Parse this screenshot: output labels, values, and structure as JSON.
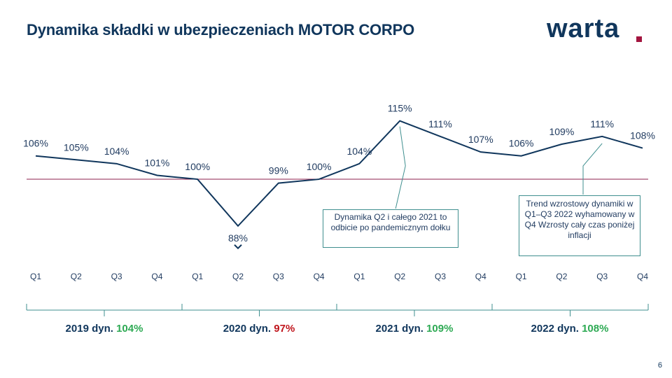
{
  "header": {
    "title": "Dynamika składki w ubezpieczeniach MOTOR CORPO",
    "logo_text": "warta"
  },
  "chart_data": {
    "type": "line",
    "categories": [
      "Q1",
      "Q2",
      "Q3",
      "Q4",
      "Q1",
      "Q2",
      "Q3",
      "Q4",
      "Q1",
      "Q2",
      "Q3",
      "Q4",
      "Q1",
      "Q2",
      "Q3",
      "Q4"
    ],
    "values": [
      106,
      105,
      104,
      101,
      100,
      88,
      99,
      100,
      104,
      115,
      111,
      107,
      106,
      109,
      111,
      108
    ],
    "labels": [
      "106%",
      "105%",
      "104%",
      "101%",
      "100%",
      "88%",
      "99%",
      "100%",
      "104%",
      "115%",
      "111%",
      "107%",
      "106%",
      "109%",
      "111%",
      "108%"
    ],
    "reference_line": 100,
    "ylim": [
      84,
      118
    ],
    "line_color": "#10365c",
    "reference_color": "#8e1f4d",
    "years": [
      {
        "prefix": "2019 dyn. ",
        "value": "104%",
        "color": "#2eaa54"
      },
      {
        "prefix": "2020 dyn. ",
        "value": "97%",
        "color": "#c0161d"
      },
      {
        "prefix": "2021 dyn. ",
        "value": "109%",
        "color": "#2eaa54"
      },
      {
        "prefix": "2022 dyn. ",
        "value": "108%",
        "color": "#2eaa54"
      }
    ],
    "annotations": [
      "Dynamika Q2 i całego 2021 to odbicie po pandemicznym dołku",
      "Trend wzrostowy dynamiki w Q1–Q3 2022 wyhamowany w Q4 Wzrosty cały czas poniżej inflacji"
    ]
  },
  "footer": {
    "page_number": "6"
  }
}
